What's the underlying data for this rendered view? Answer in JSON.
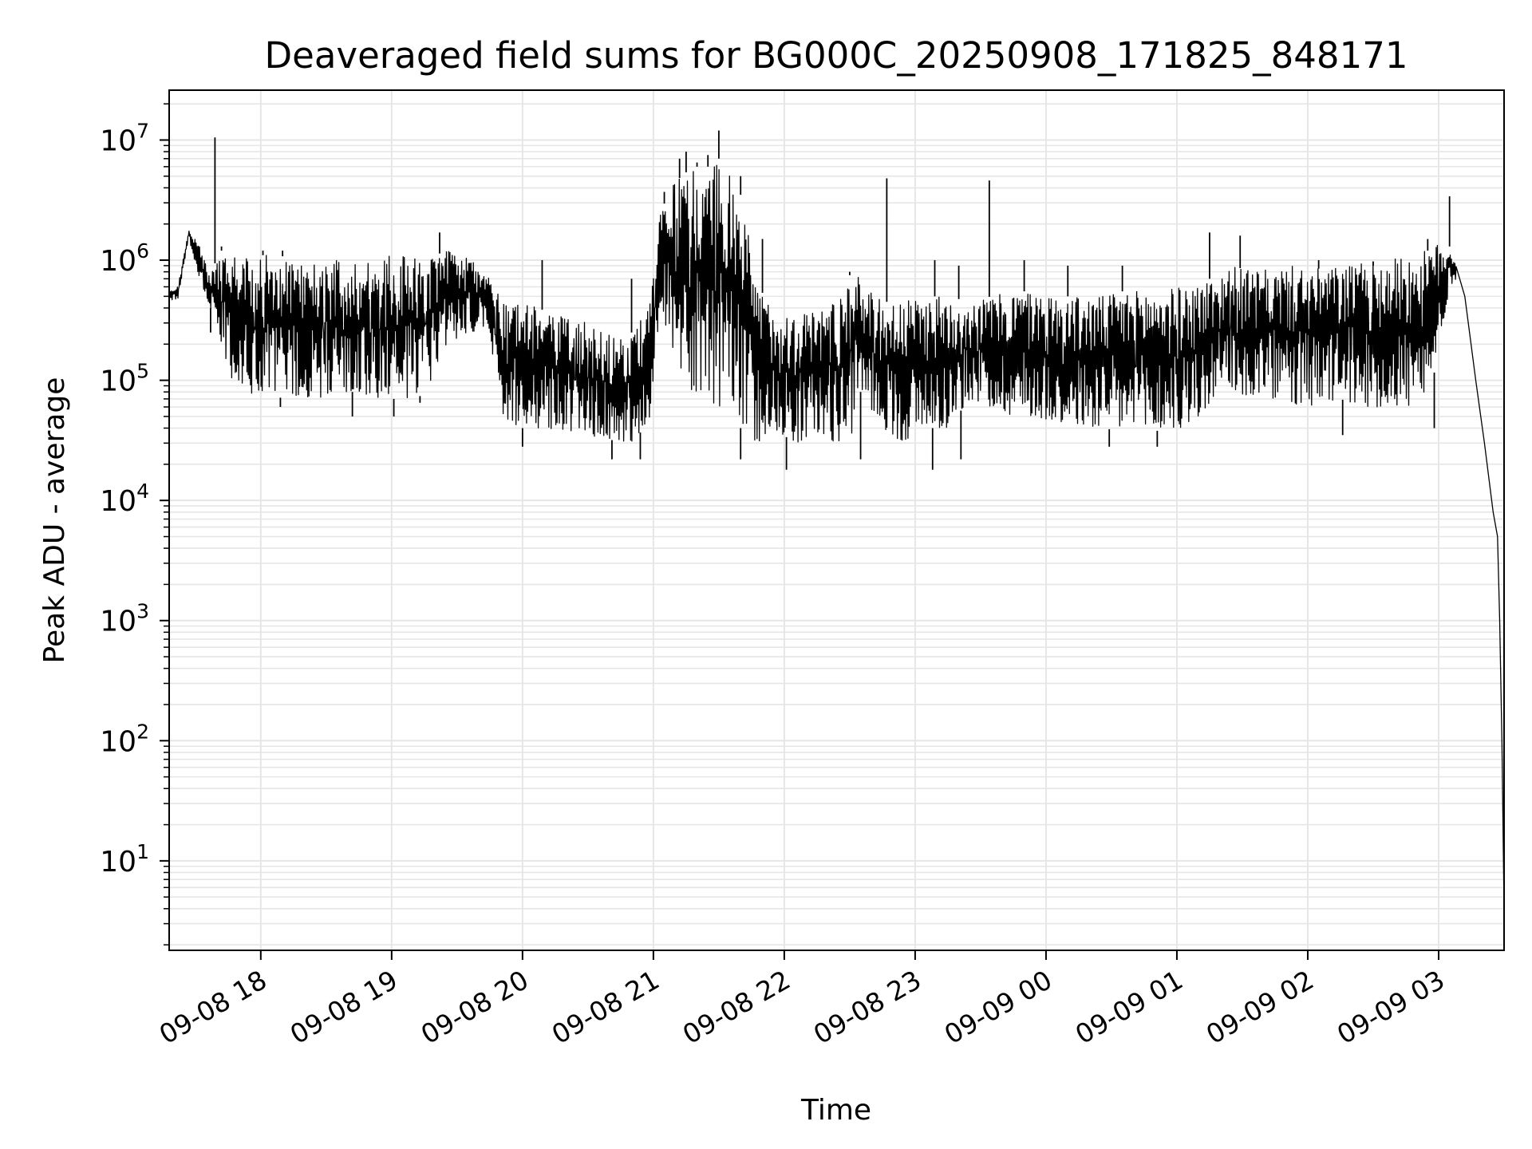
{
  "chart_data": {
    "type": "line",
    "title": "Deaveraged field sums for BG000C_20250908_171825_848171",
    "xlabel": "Time",
    "ylabel": "Peak ADU - average",
    "yscale": "log",
    "ylim": [
      1.8,
      26000000
    ],
    "xlim": [
      "2025-09-08 17:18",
      "2025-09-09 03:30"
    ],
    "grid": true,
    "line_color": "#000000",
    "grid_color": "#e6e6e6",
    "x_ticks": [
      {
        "t": "2025-09-08 18:00",
        "label": "09-08 18"
      },
      {
        "t": "2025-09-08 19:00",
        "label": "09-08 19"
      },
      {
        "t": "2025-09-08 20:00",
        "label": "09-08 20"
      },
      {
        "t": "2025-09-08 21:00",
        "label": "09-08 21"
      },
      {
        "t": "2025-09-08 22:00",
        "label": "09-08 22"
      },
      {
        "t": "2025-09-08 23:00",
        "label": "09-08 23"
      },
      {
        "t": "2025-09-09 00:00",
        "label": "09-09 00"
      },
      {
        "t": "2025-09-09 01:00",
        "label": "09-09 01"
      },
      {
        "t": "2025-09-09 02:00",
        "label": "09-09 02"
      },
      {
        "t": "2025-09-09 03:00",
        "label": "09-09 03"
      }
    ],
    "y_ticks": [
      {
        "value": 10,
        "base": "10",
        "exp": "1"
      },
      {
        "value": 100,
        "base": "10",
        "exp": "2"
      },
      {
        "value": 1000,
        "base": "10",
        "exp": "3"
      },
      {
        "value": 10000,
        "base": "10",
        "exp": "4"
      },
      {
        "value": 100000,
        "base": "10",
        "exp": "5"
      },
      {
        "value": 1000000,
        "base": "10",
        "exp": "6"
      },
      {
        "value": 10000000,
        "base": "10",
        "exp": "7"
      }
    ],
    "series": [
      {
        "type": "envelope",
        "x": [
          "2025-09-08 17:18",
          "2025-09-08 17:22",
          "2025-09-08 17:27",
          "2025-09-08 17:32",
          "2025-09-08 17:37",
          "2025-09-08 17:42",
          "2025-09-08 17:47",
          "2025-09-08 17:50",
          "2025-09-08 17:54",
          "2025-09-08 17:59",
          "2025-09-08 18:06",
          "2025-09-08 18:15",
          "2025-09-08 18:25",
          "2025-09-08 18:35",
          "2025-09-08 18:45",
          "2025-09-08 18:55",
          "2025-09-08 19:05",
          "2025-09-08 19:15",
          "2025-09-08 19:25",
          "2025-09-08 19:35",
          "2025-09-08 19:45",
          "2025-09-08 19:50",
          "2025-09-08 20:00",
          "2025-09-08 20:10",
          "2025-09-08 20:20",
          "2025-09-08 20:30",
          "2025-09-08 20:40",
          "2025-09-08 20:50",
          "2025-09-08 20:58",
          "2025-09-08 21:03",
          "2025-09-08 21:10",
          "2025-09-08 21:18",
          "2025-09-08 21:25",
          "2025-09-08 21:30",
          "2025-09-08 21:35",
          "2025-09-08 21:40",
          "2025-09-08 21:48",
          "2025-09-08 21:55",
          "2025-09-08 22:05",
          "2025-09-08 22:15",
          "2025-09-08 22:25",
          "2025-09-08 22:30",
          "2025-09-08 22:35",
          "2025-09-08 22:45",
          "2025-09-08 22:55",
          "2025-09-08 23:05",
          "2025-09-08 23:15",
          "2025-09-08 23:25",
          "2025-09-08 23:35",
          "2025-09-08 23:45",
          "2025-09-08 23:55",
          "2025-09-09 00:05",
          "2025-09-09 00:15",
          "2025-09-09 00:25",
          "2025-09-09 00:35",
          "2025-09-09 00:45",
          "2025-09-09 00:55",
          "2025-09-09 01:05",
          "2025-09-09 01:15",
          "2025-09-09 01:25",
          "2025-09-09 01:35",
          "2025-09-09 01:45",
          "2025-09-09 01:55",
          "2025-09-09 02:05",
          "2025-09-09 02:15",
          "2025-09-09 02:25",
          "2025-09-09 02:35",
          "2025-09-09 02:45",
          "2025-09-09 02:55",
          "2025-09-09 03:00",
          "2025-09-09 03:05",
          "2025-09-09 03:08"
        ],
        "low": [
          450000,
          480000,
          1500000,
          700000,
          400000,
          180000,
          100000,
          90000,
          80000,
          75000,
          70000,
          75000,
          70000,
          80000,
          80000,
          70000,
          70000,
          75000,
          200000,
          250000,
          260000,
          45000,
          40000,
          40000,
          35000,
          35000,
          32000,
          30000,
          45000,
          400000,
          150000,
          80000,
          70000,
          60000,
          60000,
          40000,
          30000,
          40000,
          30000,
          35000,
          30000,
          30000,
          80000,
          40000,
          30000,
          40000,
          40000,
          70000,
          60000,
          50000,
          50000,
          45000,
          40000,
          40000,
          38000,
          38000,
          38000,
          40000,
          60000,
          80000,
          70000,
          70000,
          60000,
          60000,
          70000,
          60000,
          60000,
          60000,
          60000,
          180000,
          600000,
          700000
        ],
        "high": [
          550000,
          600000,
          1800000,
          1300000,
          800000,
          1200000,
          1200000,
          1100000,
          1050000,
          1100000,
          1100000,
          1050000,
          1000000,
          1000000,
          950000,
          1100000,
          1100000,
          1000000,
          1200000,
          1100000,
          700000,
          550000,
          450000,
          380000,
          330000,
          300000,
          260000,
          250000,
          400000,
          2500000,
          4500000,
          6000000,
          6000000,
          7000000,
          5000000,
          3500000,
          600000,
          400000,
          350000,
          400000,
          500000,
          800000,
          700000,
          450000,
          450000,
          500000,
          500000,
          450000,
          500000,
          550000,
          550000,
          500000,
          500000,
          500000,
          550000,
          560000,
          580000,
          600000,
          700000,
          900000,
          800000,
          850000,
          900000,
          850000,
          900000,
          950000,
          1000000,
          1100000,
          1200000,
          1400000,
          1300000,
          950000
        ]
      },
      {
        "type": "line",
        "x": [
          "2025-09-09 03:08",
          "2025-09-09 03:12",
          "2025-09-09 03:17",
          "2025-09-09 03:21",
          "2025-09-09 03:25",
          "2025-09-09 03:27",
          "2025-09-09 03:28",
          "2025-09-09 03:29",
          "2025-09-09 03:30"
        ],
        "values": [
          700000,
          500000,
          100000,
          30000,
          8000,
          5000,
          1000,
          100,
          4
        ]
      },
      {
        "type": "spikes",
        "x": [
          "2025-09-08 17:39",
          "2025-09-08 17:42",
          "2025-09-08 18:01",
          "2025-09-08 18:10",
          "2025-09-08 19:22",
          "2025-09-08 20:09",
          "2025-09-08 20:50",
          "2025-09-08 21:05",
          "2025-09-08 21:12",
          "2025-09-08 21:15",
          "2025-09-08 21:20",
          "2025-09-08 21:25",
          "2025-09-08 21:30",
          "2025-09-08 21:40",
          "2025-09-08 21:50",
          "2025-09-08 22:30",
          "2025-09-08 22:47",
          "2025-09-08 23:09",
          "2025-09-08 23:20",
          "2025-09-08 23:34",
          "2025-09-08 23:50",
          "2025-09-09 00:10",
          "2025-09-09 00:35",
          "2025-09-09 01:15",
          "2025-09-09 01:29",
          "2025-09-09 02:05",
          "2025-09-09 02:30",
          "2025-09-09 02:55",
          "2025-09-09 03:05"
        ],
        "values": [
          10500000,
          1300000,
          1200000,
          1200000,
          1700000,
          1000000,
          700000,
          3700000,
          7000000,
          8000000,
          6500000,
          7500000,
          12000000,
          5000000,
          1500000,
          750000,
          4800000,
          1000000,
          900000,
          4600000,
          1000000,
          900000,
          900000,
          1700000,
          1600000,
          1000000,
          900000,
          1500000,
          3400000
        ]
      },
      {
        "type": "dips",
        "x": [
          "2025-09-08 17:37",
          "2025-09-08 18:09",
          "2025-09-08 18:42",
          "2025-09-08 19:01",
          "2025-09-08 19:13",
          "2025-09-08 20:00",
          "2025-09-08 20:41",
          "2025-09-08 20:54",
          "2025-09-08 21:40",
          "2025-09-08 22:01",
          "2025-09-08 22:35",
          "2025-09-08 23:08",
          "2025-09-08 23:21",
          "2025-09-09 00:29",
          "2025-09-09 00:51",
          "2025-09-09 02:16",
          "2025-09-09 02:58"
        ],
        "values": [
          250000,
          60000,
          50000,
          50000,
          65000,
          28000,
          22000,
          22000,
          22000,
          18000,
          22000,
          18000,
          22000,
          28000,
          28000,
          35000,
          40000
        ]
      }
    ]
  }
}
